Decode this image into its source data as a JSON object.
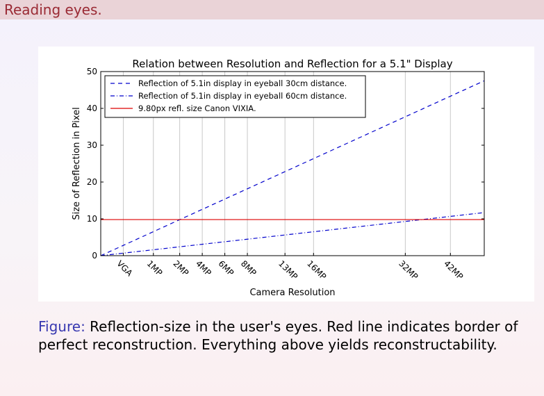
{
  "frame": {
    "title": "Reading eyes."
  },
  "caption": {
    "label": "Figure:",
    "text": " Reflection-size in the user's eyes. Red line indicates border of perfect reconstruction. Everything above yields reconstructability."
  },
  "chart_data": {
    "type": "line",
    "title": "Relation between Resolution and Reflection for a 5.1\" Display",
    "xlabel": "Camera Resolution",
    "ylabel": "Size of Reflection in Pixel",
    "x_unit": "megapixels",
    "xlim": [
      0,
      51
    ],
    "ylim": [
      0,
      50
    ],
    "yticks": [
      0,
      10,
      20,
      30,
      40,
      50
    ],
    "grid": "vertical lines at camera resolutions",
    "legend_position": "top-left",
    "x_ticks": [
      {
        "label": "VGA",
        "value": 3
      },
      {
        "label": "1MP",
        "value": 7
      },
      {
        "label": "2MP",
        "value": 10.5
      },
      {
        "label": "4MP",
        "value": 13.5
      },
      {
        "label": "6MP",
        "value": 16.5
      },
      {
        "label": "8MP",
        "value": 19.5
      },
      {
        "label": "13MP",
        "value": 24.5
      },
      {
        "label": "16MP",
        "value": 28.3
      },
      {
        "label": "32MP",
        "value": 40.5
      },
      {
        "label": "42MP",
        "value": 46.5
      }
    ],
    "series": [
      {
        "name": "Reflection of 5.1in display in eyeball 30cm distance.",
        "color": "#0000cc",
        "style": "dashed",
        "x": [
          0,
          51
        ],
        "y": [
          0,
          47.5
        ]
      },
      {
        "name": "Reflection of 5.1in display in eyeball 60cm distance.",
        "color": "#0000cc",
        "style": "dashdot",
        "x": [
          0,
          51
        ],
        "y": [
          0,
          11.7
        ]
      },
      {
        "name": "9.80px refl. size Canon VIXIA.",
        "color": "#dd0000",
        "style": "solid",
        "x": [
          0,
          51
        ],
        "y": [
          9.8,
          9.8
        ]
      }
    ]
  }
}
